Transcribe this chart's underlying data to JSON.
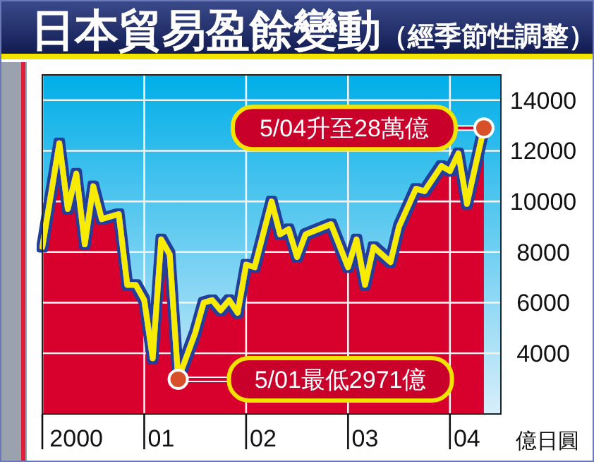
{
  "chart_data": {
    "type": "area",
    "title": "日本貿易盈餘變動",
    "subtitle": "（經季節性調整）",
    "ylabel": "億日圓",
    "x": [
      "2000-01",
      "2000-03",
      "2000-04",
      "2000-05",
      "2000-06",
      "2000-07",
      "2000-08",
      "2000-10",
      "2000-11",
      "2000-12",
      "2001-01",
      "2001-02",
      "2001-03",
      "2001-04",
      "2001-05",
      "2001-07",
      "2001-08",
      "2001-09",
      "2001-10",
      "2001-11",
      "2001-12",
      "2002-01",
      "2002-02",
      "2002-04",
      "2002-05",
      "2002-06",
      "2002-07",
      "2002-08",
      "2002-11",
      "2003-01",
      "2003-02",
      "2003-03",
      "2003-04",
      "2003-06",
      "2003-07",
      "2003-09",
      "2003-10",
      "2003-12",
      "2004-01",
      "2004-02",
      "2004-03",
      "2004-05"
    ],
    "series": [
      {
        "color": "#d8002c",
        "values": [
          8200,
          12300,
          9700,
          11100,
          8300,
          10600,
          9300,
          9500,
          6700,
          6700,
          6100,
          3800,
          8500,
          7900,
          2971,
          4800,
          6000,
          6100,
          5700,
          6100,
          5600,
          7500,
          7400,
          10000,
          8700,
          8900,
          7800,
          8700,
          9100,
          7400,
          8500,
          6700,
          8200,
          7600,
          9000,
          10500,
          10400,
          11400,
          11200,
          11900,
          9900,
          12900
        ]
      }
    ],
    "xlim": [
      "2000-01",
      "2004-07"
    ],
    "xticks": [
      {
        "value": "2000-01",
        "label": null
      },
      {
        "value": "2001-01",
        "label": null
      },
      {
        "value": "2002-01",
        "label": null
      },
      {
        "value": "2003-01",
        "label": null
      },
      {
        "value": "2004-01",
        "label": null
      },
      {
        "value": "2000-05",
        "label": "2000"
      },
      {
        "value": "2001-03",
        "label": "01"
      },
      {
        "value": "2002-03",
        "label": "02"
      },
      {
        "value": "2003-03",
        "label": "03"
      },
      {
        "value": "2004-03",
        "label": "04"
      }
    ],
    "ylim": [
      1600,
      15000
    ],
    "yticks": [
      4000,
      6000,
      8000,
      10000,
      12000,
      14000
    ],
    "grid": true,
    "annotations": [
      {
        "text": "5/04升至28萬億",
        "x": "2004-05",
        "y": 12900
      },
      {
        "text": "5/01最低2971億",
        "x": "2001-05",
        "y": 2971
      }
    ]
  }
}
